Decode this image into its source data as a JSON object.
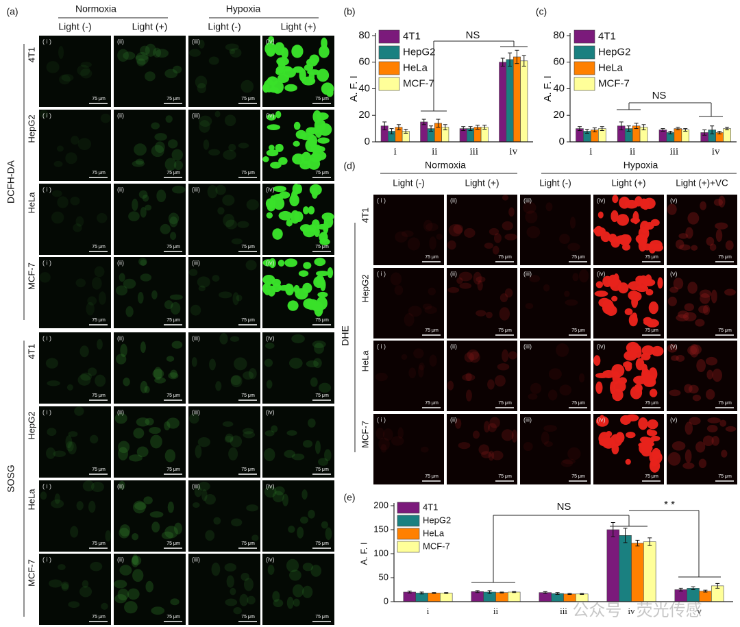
{
  "panel_a": {
    "panel_label": "(a)",
    "conditions": [
      "Normoxia",
      "Hypoxia"
    ],
    "light": [
      "Light (-)",
      "Light (+)",
      "Light (-)",
      "Light (+)"
    ],
    "columns": [
      "( i )",
      "(ii)",
      "(iii)",
      "(iv)"
    ],
    "groups": [
      {
        "name": "DCFH-DA",
        "rows": [
          "4T1",
          "HepG2",
          "HeLa",
          "MCF-7"
        ]
      },
      {
        "name": "SOSG",
        "rows": [
          "4T1",
          "HepG2",
          "HeLa",
          "MCF-7"
        ]
      }
    ]
  },
  "panel_d": {
    "panel_label": "(d)",
    "conditions": [
      "Normoxia",
      "Hypoxia"
    ],
    "light": [
      "Light (-)",
      "Light (+)",
      "Light (-)",
      "Light (+)",
      "Light (+)+VC"
    ],
    "columns": [
      "( i )",
      "(ii)",
      "(iii)",
      "(iv)",
      "(v)"
    ],
    "group": "DHE",
    "rows": [
      "4T1",
      "HepG2",
      "HeLa",
      "MCF-7"
    ]
  },
  "scale_bar": "75 μm",
  "watermark": "公众号 · 荧光传感",
  "chart_data": [
    {
      "type": "bar",
      "panel_label": "(b)",
      "y_label": "A. F. I",
      "categories": [
        "i",
        "ii",
        "iii",
        "iv"
      ],
      "series": [
        {
          "name": "4T1",
          "color": "#7b1a7b",
          "values": [
            12,
            15,
            10,
            60
          ],
          "errors": [
            3,
            2,
            1.5,
            3
          ]
        },
        {
          "name": "HepG2",
          "color": "#1a8080",
          "values": [
            8,
            10,
            10,
            62
          ],
          "errors": [
            2,
            2,
            1.5,
            5
          ]
        },
        {
          "name": "HeLa",
          "color": "#ff8000",
          "values": [
            11,
            14,
            11,
            64
          ],
          "errors": [
            2,
            3,
            1.5,
            5
          ]
        },
        {
          "name": "MCF-7",
          "color": "#ffff99",
          "values": [
            8,
            11,
            11,
            61
          ],
          "errors": [
            1.5,
            2,
            1.5,
            4
          ]
        }
      ],
      "ylim": [
        0,
        80
      ],
      "yticks": [
        0,
        20,
        40,
        60,
        80
      ],
      "annotations": [
        "NS"
      ]
    },
    {
      "type": "bar",
      "panel_label": "(c)",
      "y_label": "A. F. I",
      "categories": [
        "i",
        "ii",
        "iii",
        "iv"
      ],
      "series": [
        {
          "name": "4T1",
          "color": "#7b1a7b",
          "values": [
            10,
            12,
            9,
            7
          ],
          "errors": [
            1.5,
            3,
            1,
            2
          ]
        },
        {
          "name": "HepG2",
          "color": "#1a8080",
          "values": [
            8,
            10,
            7,
            9
          ],
          "errors": [
            1.5,
            2,
            1,
            3
          ]
        },
        {
          "name": "HeLa",
          "color": "#ff8000",
          "values": [
            9,
            12,
            10,
            7
          ],
          "errors": [
            1.5,
            2,
            1,
            1
          ]
        },
        {
          "name": "MCF-7",
          "color": "#ffff99",
          "values": [
            10,
            11,
            9,
            10
          ],
          "errors": [
            1.5,
            2,
            1,
            1
          ]
        }
      ],
      "ylim": [
        0,
        80
      ],
      "yticks": [
        0,
        20,
        40,
        60,
        80
      ],
      "annotations": [
        "NS"
      ]
    },
    {
      "type": "bar",
      "panel_label": "(e)",
      "y_label": "A. F. I",
      "categories": [
        "i",
        "ii",
        "iii",
        "iv",
        "v"
      ],
      "series": [
        {
          "name": "4T1",
          "color": "#7b1a7b",
          "values": [
            20,
            21,
            19,
            150,
            25
          ],
          "errors": [
            2,
            2,
            2,
            15,
            3
          ]
        },
        {
          "name": "HepG2",
          "color": "#1a8080",
          "values": [
            18,
            20,
            17,
            138,
            28
          ],
          "errors": [
            2,
            3,
            2,
            15,
            3
          ]
        },
        {
          "name": "HeLa",
          "color": "#ff8000",
          "values": [
            18,
            19,
            16,
            122,
            22
          ],
          "errors": [
            1,
            1,
            1,
            6,
            2
          ]
        },
        {
          "name": "MCF-7",
          "color": "#ffff99",
          "values": [
            18,
            20,
            16,
            125,
            33
          ],
          "errors": [
            1,
            1,
            1,
            8,
            5
          ]
        }
      ],
      "ylim": [
        0,
        200
      ],
      "yticks": [
        0,
        50,
        100,
        150,
        200
      ],
      "annotations": [
        "NS",
        "* *"
      ]
    }
  ]
}
